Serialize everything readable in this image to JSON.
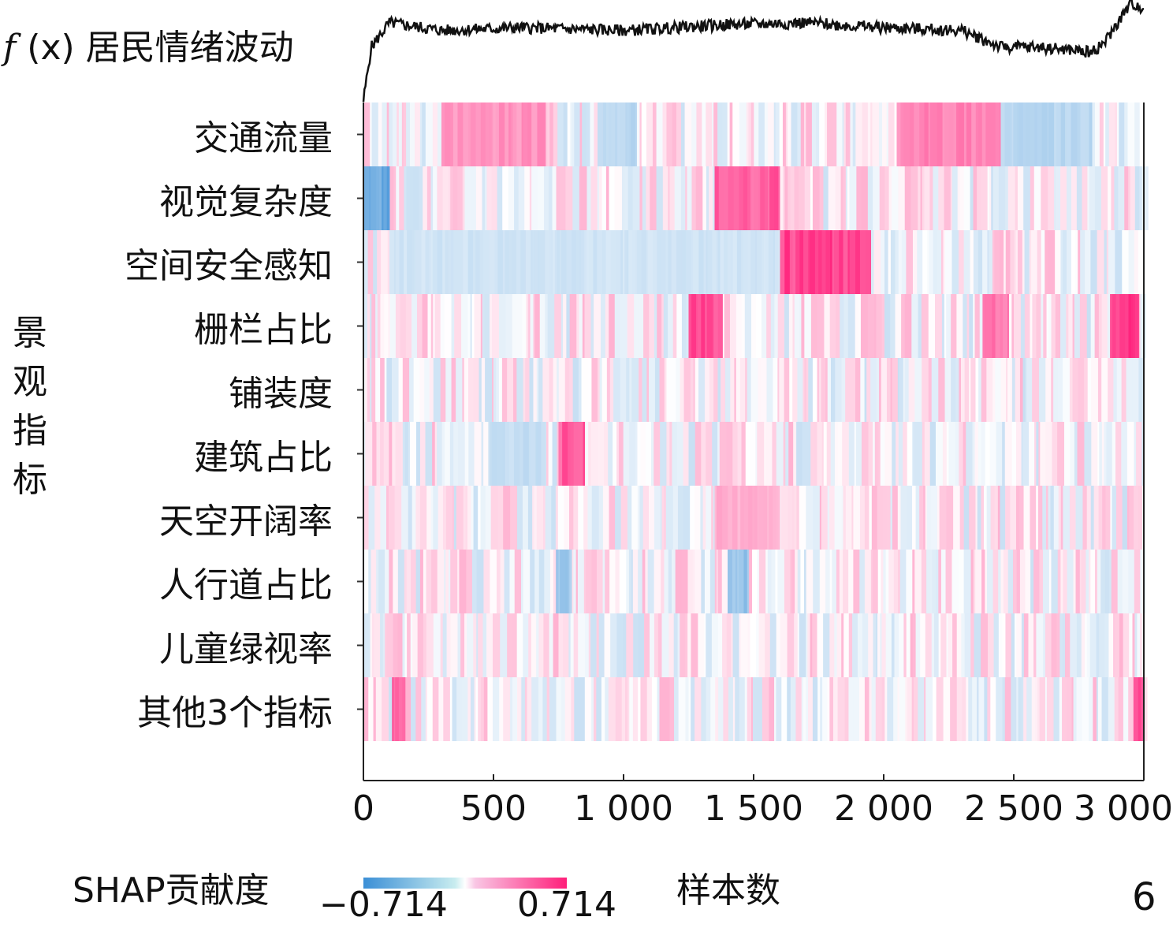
{
  "chart_data": {
    "type": "heatmap",
    "title": "",
    "top_line_label": {
      "prefix": "f",
      "arg": "(x)",
      "text": "居民情绪波动"
    },
    "ylabel": "景观指标",
    "xlabel": "样本数",
    "xlim": [
      0,
      3000
    ],
    "x_ticks": [
      "0",
      "500",
      "1 000",
      "1 500",
      "2 000",
      "2 500",
      "3 000"
    ],
    "x_tick_values": [
      0,
      500,
      1000,
      1500,
      2000,
      2500,
      3000
    ],
    "rows": [
      "交通流量",
      "视觉复杂度",
      "空间安全感知",
      "栅栏占比",
      "铺装度",
      "建筑占比",
      "天空开阔率",
      "人行道占比",
      "儿童绿视率",
      "其他3个指标"
    ],
    "colorbar": {
      "title": "SHAP贡献度",
      "min_label": "−0.714",
      "max_label": "0.714",
      "min": -0.714,
      "max": 0.714,
      "colors": {
        "negative": "#3b8fd6",
        "neutral": "#ffffff",
        "positive": "#ff1f7a"
      }
    },
    "highlight_segments": [
      {
        "row": "交通流量",
        "x": [
          300,
          700
        ],
        "shap": 0.4
      },
      {
        "row": "交通流量",
        "x": [
          2050,
          2450
        ],
        "shap": 0.45
      },
      {
        "row": "交通流量",
        "x": [
          900,
          1050
        ],
        "shap": -0.3
      },
      {
        "row": "交通流量",
        "x": [
          2450,
          2800
        ],
        "shap": -0.3
      },
      {
        "row": "视觉复杂度",
        "x": [
          0,
          100
        ],
        "shap": -0.65
      },
      {
        "row": "视觉复杂度",
        "x": [
          1350,
          1600
        ],
        "shap": 0.6
      },
      {
        "row": "空间安全感知",
        "x": [
          1600,
          1950
        ],
        "shap": 0.7
      },
      {
        "row": "空间安全感知",
        "x": [
          100,
          1600
        ],
        "shap": -0.2
      },
      {
        "row": "栅栏占比",
        "x": [
          1250,
          1380
        ],
        "shap": 0.65
      },
      {
        "row": "栅栏占比",
        "x": [
          2870,
          2980
        ],
        "shap": 0.7
      },
      {
        "row": "栅栏占比",
        "x": [
          2380,
          2480
        ],
        "shap": 0.5
      },
      {
        "row": "建筑占比",
        "x": [
          750,
          850
        ],
        "shap": 0.6
      },
      {
        "row": "建筑占比",
        "x": [
          480,
          700
        ],
        "shap": -0.25
      },
      {
        "row": "天空开阔率",
        "x": [
          1350,
          1600
        ],
        "shap": 0.3
      },
      {
        "row": "人行道占比",
        "x": [
          1400,
          1480
        ],
        "shap": -0.45
      },
      {
        "row": "人行道占比",
        "x": [
          740,
          800
        ],
        "shap": -0.4
      },
      {
        "row": "其他3个指标",
        "x": [
          110,
          160
        ],
        "shap": 0.6
      },
      {
        "row": "其他3个指标",
        "x": [
          2960,
          3000
        ],
        "shap": 0.7
      }
    ],
    "fx_line": {
      "x": [
        0,
        30,
        100,
        300,
        600,
        1000,
        1400,
        1700,
        2000,
        2300,
        2450,
        2600,
        2800,
        2850,
        2950,
        3000
      ],
      "y": [
        0.0,
        0.55,
        0.8,
        0.72,
        0.75,
        0.72,
        0.78,
        0.8,
        0.75,
        0.72,
        0.55,
        0.55,
        0.5,
        0.6,
        1.0,
        0.95
      ]
    },
    "panel_number": "6"
  }
}
